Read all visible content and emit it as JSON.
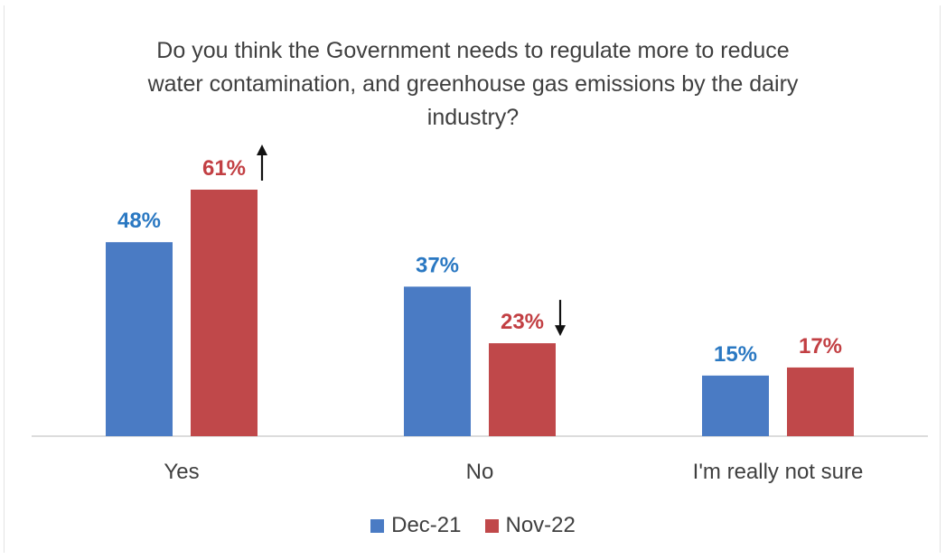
{
  "chart_data": {
    "type": "bar",
    "title_lines": [
      "Do you think the Government needs to regulate more to reduce",
      "water contamination, and greenhouse gas emissions by the dairy",
      "industry?"
    ],
    "categories": [
      "Yes",
      "No",
      "I'm really not sure"
    ],
    "series": [
      {
        "name": "Dec-21",
        "color": "#4a7bc4",
        "label_color": "#2a78c2",
        "values": [
          48,
          37,
          15
        ],
        "labels": [
          "48%",
          "37%",
          "15%"
        ]
      },
      {
        "name": "Nov-22",
        "color": "#c0484a",
        "label_color": "#c23f43",
        "values": [
          61,
          23,
          17
        ],
        "labels": [
          "61%",
          "23%",
          "17%"
        ]
      }
    ],
    "annotations": [
      {
        "series": 1,
        "category": 0,
        "arrow": "up"
      },
      {
        "series": 1,
        "category": 1,
        "arrow": "down"
      }
    ],
    "ylim": [
      0,
      70
    ],
    "grid": false,
    "legend": "bottom"
  }
}
